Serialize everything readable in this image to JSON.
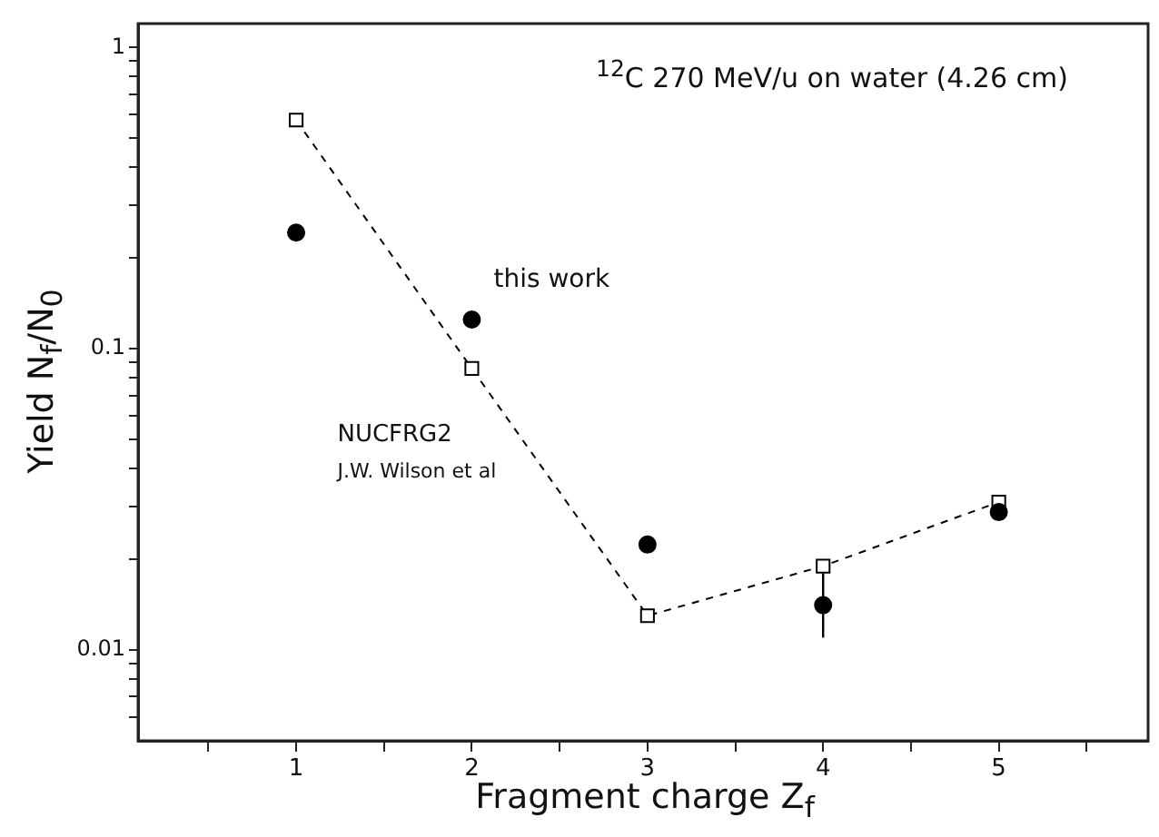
{
  "chart_data": {
    "type": "scatter",
    "title": "$^{12}$C 270 MeV/u on water (4.26 cm)",
    "xlabel": "Fragment charge Z$_{f}$",
    "ylabel": "Yield N$_{f}$/N$_{0}$",
    "x": [
      1,
      2,
      3,
      4,
      5
    ],
    "series": [
      {
        "name": "this work",
        "type": "scatter",
        "color": "#000000",
        "marker": "circle",
        "values": [
          0.243,
          0.125,
          0.0224,
          0.0141,
          0.0287
        ],
        "errors": [
          null,
          null,
          null,
          [
            0.011,
            0.018
          ],
          null
        ]
      },
      {
        "name": "NUCFRG2",
        "type": "line",
        "color": "#000000",
        "marker": "square",
        "line_style": "dashed",
        "values": [
          0.574,
          0.086,
          0.013,
          0.019,
          0.031
        ]
      }
    ],
    "annotations": [
      "J.W. Wilson et al"
    ],
    "log": "y",
    "grid": false,
    "legend": false,
    "xlim": [
      0.1,
      5.85
    ],
    "xticks": [
      {
        "value": 0.5,
        "label": null
      },
      1,
      {
        "value": 1.5,
        "label": null
      },
      2,
      {
        "value": 2.5,
        "label": null
      },
      3,
      {
        "value": 3.5,
        "label": null
      },
      4,
      {
        "value": 4.5,
        "label": null
      },
      5,
      {
        "value": 5.5,
        "label": null
      }
    ],
    "ylim": [
      0.005,
      1.2
    ],
    "yticks": [
      {
        "value": 0.006,
        "label": null
      },
      {
        "value": 0.007,
        "label": null
      },
      {
        "value": 0.008,
        "label": null
      },
      {
        "value": 0.009,
        "label": null
      },
      0.01,
      {
        "value": 0.02,
        "label": null
      },
      {
        "value": 0.03,
        "label": null
      },
      {
        "value": 0.04,
        "label": null
      },
      {
        "value": 0.05,
        "label": null
      },
      {
        "value": 0.06,
        "label": null
      },
      {
        "value": 0.07,
        "label": null
      },
      {
        "value": 0.08,
        "label": null
      },
      {
        "value": 0.09,
        "label": null
      },
      0.1,
      {
        "value": 0.2,
        "label": null
      },
      {
        "value": 0.3,
        "label": null
      },
      {
        "value": 0.4,
        "label": null
      },
      {
        "value": 0.5,
        "label": null
      },
      {
        "value": 0.6,
        "label": null
      },
      {
        "value": 0.7,
        "label": null
      },
      {
        "value": 0.8,
        "label": null
      },
      {
        "value": 0.9,
        "label": null
      },
      1
    ]
  }
}
